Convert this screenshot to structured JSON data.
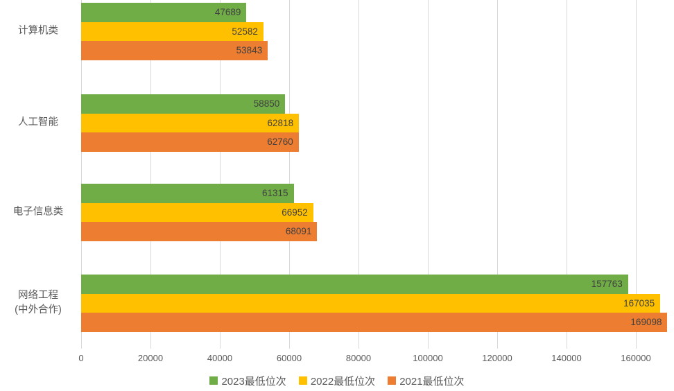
{
  "chart_data": {
    "type": "bar",
    "orientation": "horizontal",
    "title": "",
    "xlabel": "",
    "ylabel": "",
    "categories": [
      "计算机类",
      "人工智能",
      "电子信息类",
      "网络工程\n(中外合作)"
    ],
    "series": [
      {
        "name": "2023最低位次",
        "color": "#70AD47",
        "values": [
          47689,
          58850,
          61315,
          157763
        ]
      },
      {
        "name": "2022最低位次",
        "color": "#FFC000",
        "values": [
          52582,
          62818,
          66952,
          167035
        ]
      },
      {
        "name": "2021最低位次",
        "color": "#ED7D31",
        "values": [
          53843,
          62760,
          68091,
          169098
        ]
      }
    ],
    "xlim": [
      0,
      170000
    ],
    "xticks": [
      0,
      20000,
      40000,
      60000,
      80000,
      100000,
      120000,
      140000,
      160000
    ],
    "grid": true,
    "gridline_color": "#d9d9d9",
    "data_labels": true,
    "data_label_color": "#404040",
    "axis_text_color": "#595959",
    "legend_position": "bottom"
  }
}
